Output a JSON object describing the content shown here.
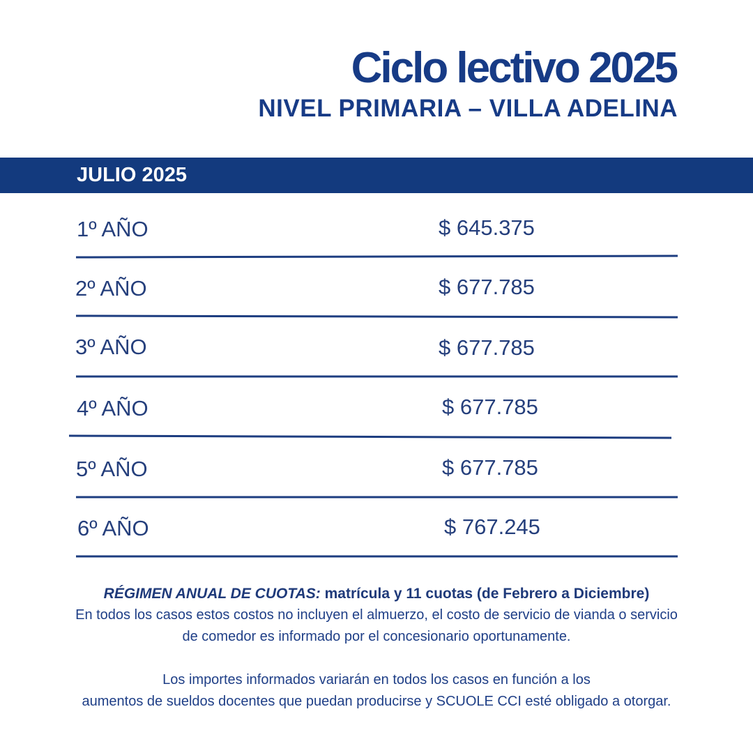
{
  "header": {
    "title": "Ciclo lectivo 2025",
    "subtitle": "NIVEL PRIMARIA – VILLA ADELINA"
  },
  "band": {
    "label": "JULIO 2025"
  },
  "rows": [
    {
      "grade": "1º AÑO",
      "price": "$ 645.375"
    },
    {
      "grade": "2º AÑO",
      "price": "$ 677.785"
    },
    {
      "grade": "3º AÑO",
      "price": "$ 677.785"
    },
    {
      "grade": "4º AÑO",
      "price": "$ 677.785"
    },
    {
      "grade": "5º AÑO",
      "price": "$ 677.785"
    },
    {
      "grade": "6º AÑO",
      "price": "$ 767.245"
    }
  ],
  "notes": {
    "regimen_label": "RÉGIMEN ANUAL DE CUOTAS:",
    "regimen_text": " matrícula y 11 cuotas (de Febrero a Diciembre)",
    "line2": "En todos los casos estos costos no incluyen el almuerzo, el costo de servicio de vianda o servicio",
    "line3": "de comedor es informado por el concesionario oportunamente.",
    "line4": "Los importes informados variarán en todos los casos en función a los",
    "line5": "aumentos de sueldos docentes que puedan producirse y SCUOLE CCI esté obligado a otorgar."
  },
  "colors": {
    "brand_blue": "#133a7e",
    "text_blue": "#253f7c"
  }
}
